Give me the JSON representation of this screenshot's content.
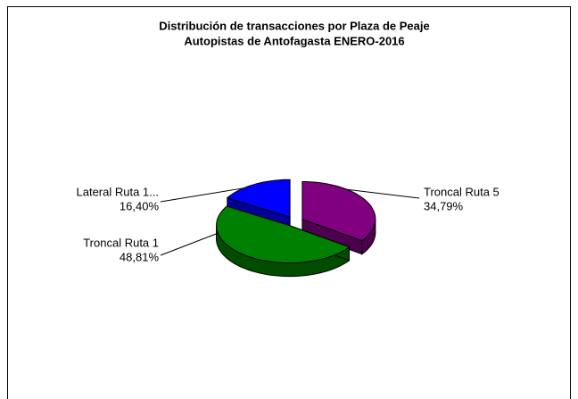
{
  "chart_data": {
    "type": "pie",
    "title": "Distribución de transacciones por Plaza de Peaje",
    "subtitle": "Autopistas de Antofagasta ENERO-2016",
    "categories": [
      "Troncal Ruta 5",
      "Troncal Ruta 1",
      "Lateral Ruta 1..."
    ],
    "values": [
      34.79,
      48.81,
      16.4
    ],
    "value_labels": [
      "34,79%",
      "48,81%",
      "16,40%"
    ],
    "colors": [
      "#800080",
      "#008000",
      "#0000ff"
    ]
  }
}
